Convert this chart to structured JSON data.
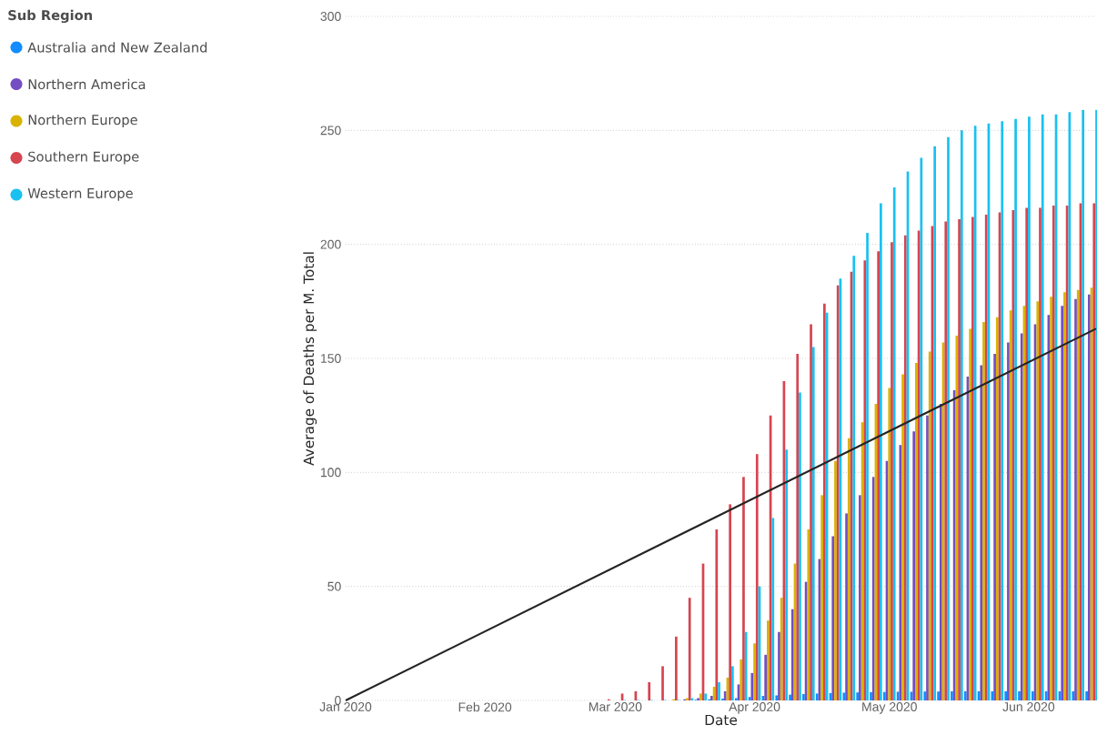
{
  "chart_data": {
    "type": "bar",
    "xlabel": "Date",
    "ylabel": "Average of Deaths per M. Total",
    "legend_title": "Sub Region",
    "legend": "top left",
    "grid": "y",
    "xlim": [
      "2020-01-01",
      "2020-06-16"
    ],
    "xticks": [
      {
        "value": "2020-01-01",
        "label": "Jan 2020"
      },
      {
        "value": "2020-02-01",
        "label": "Feb 2020"
      },
      {
        "value": "2020-03-01",
        "label": "Mar 2020"
      },
      {
        "value": "2020-04-01",
        "label": "Apr 2020"
      },
      {
        "value": "2020-05-01",
        "label": "May 2020"
      },
      {
        "value": "2020-06-01",
        "label": "Jun 2020"
      }
    ],
    "ylim": [
      0,
      300
    ],
    "yticks": [
      0,
      50,
      100,
      150,
      200,
      250,
      300
    ],
    "x": [
      "2020-02-16",
      "2020-02-19",
      "2020-02-22",
      "2020-02-25",
      "2020-02-28",
      "2020-03-02",
      "2020-03-05",
      "2020-03-08",
      "2020-03-11",
      "2020-03-14",
      "2020-03-17",
      "2020-03-20",
      "2020-03-23",
      "2020-03-26",
      "2020-03-29",
      "2020-04-01",
      "2020-04-04",
      "2020-04-07",
      "2020-04-10",
      "2020-04-13",
      "2020-04-16",
      "2020-04-19",
      "2020-04-22",
      "2020-04-25",
      "2020-04-28",
      "2020-05-01",
      "2020-05-04",
      "2020-05-07",
      "2020-05-10",
      "2020-05-13",
      "2020-05-16",
      "2020-05-19",
      "2020-05-22",
      "2020-05-25",
      "2020-05-28",
      "2020-05-31",
      "2020-06-03",
      "2020-06-06",
      "2020-06-09",
      "2020-06-12",
      "2020-06-15"
    ],
    "series": [
      {
        "name": "Australia and New Zealand",
        "color": "#118dff",
        "values": [
          0,
          0,
          0,
          0,
          0,
          0,
          0,
          0,
          0,
          0,
          null,
          0.3,
          0.5,
          0.8,
          1,
          1.5,
          2,
          2.2,
          2.5,
          2.8,
          3,
          3.2,
          3.4,
          3.5,
          3.6,
          3.7,
          3.8,
          3.8,
          3.9,
          3.9,
          4,
          4,
          4,
          4,
          4,
          4,
          4,
          4,
          4,
          4,
          4
        ]
      },
      {
        "name": "Northern America",
        "color": "#744ec2",
        "values": [
          0,
          0,
          0,
          0,
          0,
          0,
          0,
          0,
          0,
          0,
          0.5,
          1,
          2,
          4,
          7,
          12,
          20,
          30,
          40,
          52,
          62,
          72,
          82,
          90,
          98,
          105,
          112,
          118,
          125,
          130,
          136,
          142,
          147,
          152,
          157,
          161,
          165,
          169,
          173,
          176,
          178
        ]
      },
      {
        "name": "Northern Europe",
        "color": "#d9b300",
        "values": [
          0,
          0,
          0,
          0,
          0,
          0,
          0,
          0,
          0,
          0.5,
          1,
          3,
          6,
          10,
          18,
          25,
          35,
          45,
          60,
          75,
          90,
          105,
          115,
          122,
          130,
          137,
          143,
          148,
          153,
          157,
          160,
          163,
          166,
          168,
          171,
          173,
          175,
          177,
          179,
          180,
          181
        ]
      },
      {
        "name": "Southern Europe",
        "color": "#d64550",
        "values": [
          0,
          0,
          0,
          0,
          0.5,
          3,
          4,
          8,
          15,
          28,
          45,
          60,
          75,
          86,
          98,
          108,
          125,
          140,
          152,
          165,
          174,
          182,
          188,
          193,
          197,
          201,
          204,
          206,
          208,
          210,
          211,
          212,
          213,
          214,
          215,
          216,
          216,
          217,
          217,
          218,
          218
        ]
      },
      {
        "name": "Western Europe",
        "color": "#1ac1f0",
        "values": [
          0,
          0,
          0,
          0,
          0,
          0.2,
          0.2,
          0.2,
          0.2,
          0.2,
          1,
          3,
          8,
          15,
          30,
          50,
          80,
          110,
          135,
          155,
          170,
          185,
          195,
          205,
          218,
          225,
          232,
          238,
          243,
          247,
          250,
          252,
          253,
          254,
          255,
          256,
          257,
          257,
          258,
          259,
          259
        ]
      },
      {
        "type": "line",
        "color": "#252423",
        "x": [
          "2020-01-01",
          "2020-06-16"
        ],
        "values": [
          0,
          163
        ]
      }
    ]
  }
}
